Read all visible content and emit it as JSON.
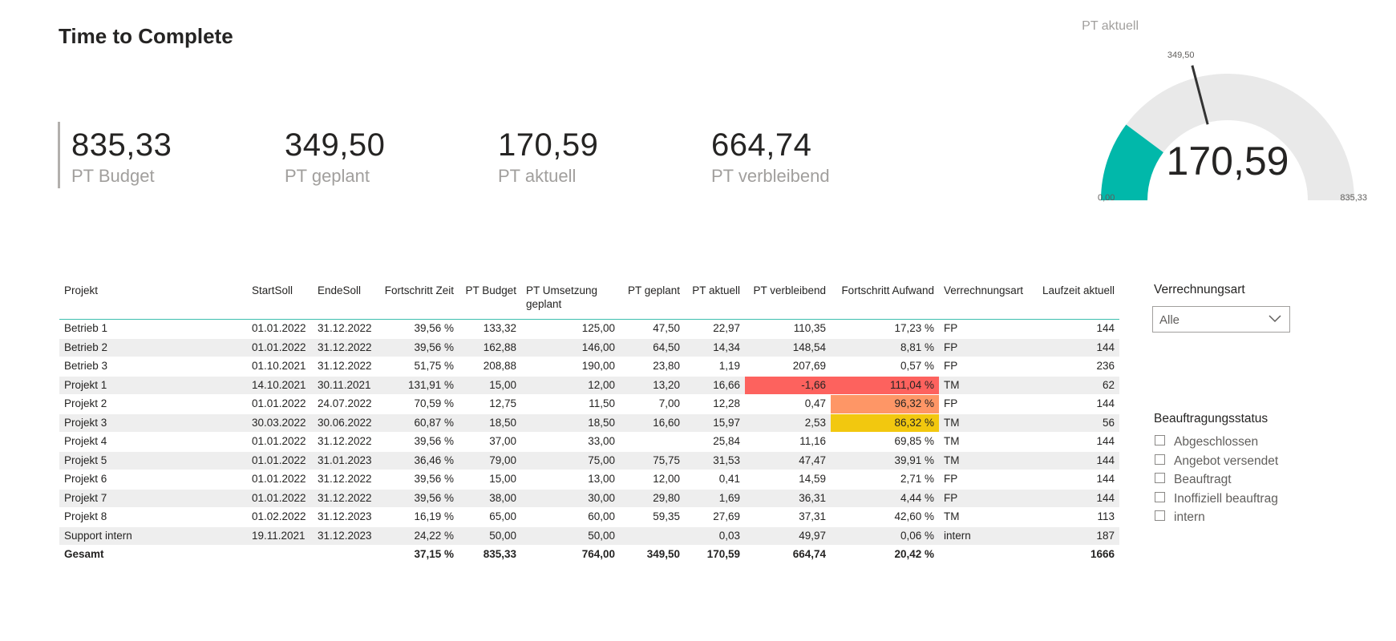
{
  "page": {
    "title": "Time to Complete"
  },
  "kpis": [
    {
      "value": "835,33",
      "label": "PT Budget"
    },
    {
      "value": "349,50",
      "label": "PT geplant"
    },
    {
      "value": "170,59",
      "label": "PT aktuell"
    },
    {
      "value": "664,74",
      "label": "PT verbleibend"
    }
  ],
  "gauge": {
    "title": "PT aktuell",
    "value": 170.59,
    "value_label": "170,59",
    "min": 0,
    "min_label": "0,00",
    "max": 835.33,
    "max_label": "835,33",
    "target": 349.5,
    "target_label": "349,50",
    "fill_color": "#01b8aa",
    "track_color": "#e9e9e9"
  },
  "table": {
    "columns": [
      "Projekt",
      "StartSoll",
      "EndeSoll",
      "Fortschritt Zeit",
      "PT Budget",
      "PT Umsetzung geplant",
      "PT geplant",
      "PT aktuell",
      "PT verbleibend",
      "Fortschritt Aufwand",
      "Verrechnungsart",
      "Laufzeit aktuell"
    ],
    "rows": [
      [
        "Betrieb 1",
        "01.01.2022",
        "31.12.2022",
        "39,56 %",
        "133,32",
        "125,00",
        "47,50",
        "22,97",
        "110,35",
        "17,23 %",
        "FP",
        "144"
      ],
      [
        "Betrieb 2",
        "01.01.2022",
        "31.12.2022",
        "39,56 %",
        "162,88",
        "146,00",
        "64,50",
        "14,34",
        "148,54",
        "8,81 %",
        "FP",
        "144"
      ],
      [
        "Betrieb 3",
        "01.10.2021",
        "31.12.2022",
        "51,75 %",
        "208,88",
        "190,00",
        "23,80",
        "1,19",
        "207,69",
        "0,57 %",
        "FP",
        "236"
      ],
      [
        "Projekt 1",
        "14.10.2021",
        "30.11.2021",
        "131,91 %",
        "15,00",
        "12,00",
        "13,20",
        "16,66",
        "-1,66",
        "111,04 %",
        "TM",
        "62"
      ],
      [
        "Projekt 2",
        "01.01.2022",
        "24.07.2022",
        "70,59 %",
        "12,75",
        "11,50",
        "7,00",
        "12,28",
        "0,47",
        "96,32 %",
        "FP",
        "144"
      ],
      [
        "Projekt 3",
        "30.03.2022",
        "30.06.2022",
        "60,87 %",
        "18,50",
        "18,50",
        "16,60",
        "15,97",
        "2,53",
        "86,32 %",
        "TM",
        "56"
      ],
      [
        "Projekt 4",
        "01.01.2022",
        "31.12.2022",
        "39,56 %",
        "37,00",
        "33,00",
        "",
        "25,84",
        "11,16",
        "69,85 %",
        "TM",
        "144"
      ],
      [
        "Projekt 5",
        "01.01.2022",
        "31.01.2023",
        "36,46 %",
        "79,00",
        "75,00",
        "75,75",
        "31,53",
        "47,47",
        "39,91 %",
        "TM",
        "144"
      ],
      [
        "Projekt 6",
        "01.01.2022",
        "31.12.2022",
        "39,56 %",
        "15,00",
        "13,00",
        "12,00",
        "0,41",
        "14,59",
        "2,71 %",
        "FP",
        "144"
      ],
      [
        "Projekt 7",
        "01.01.2022",
        "31.12.2022",
        "39,56 %",
        "38,00",
        "30,00",
        "29,80",
        "1,69",
        "36,31",
        "4,44 %",
        "FP",
        "144"
      ],
      [
        "Projekt 8",
        "01.02.2022",
        "31.12.2023",
        "16,19 %",
        "65,00",
        "60,00",
        "59,35",
        "27,69",
        "37,31",
        "42,60 %",
        "TM",
        "113"
      ],
      [
        "Support intern",
        "19.11.2021",
        "31.12.2023",
        "24,22 %",
        "50,00",
        "50,00",
        "",
        "0,03",
        "49,97",
        "0,06 %",
        "intern",
        "187"
      ]
    ],
    "total": [
      "Gesamt",
      "",
      "",
      "37,15 %",
      "835,33",
      "764,00",
      "349,50",
      "170,59",
      "664,74",
      "20,42 %",
      "",
      "1666"
    ],
    "highlight_colors": {
      "red": "#fd625e",
      "orange": "#fe9666",
      "yellow": "#f2c80f"
    }
  },
  "slicer_verrechnungsart": {
    "title": "Verrechnungsart",
    "selected": "Alle"
  },
  "slicer_status": {
    "title": "Beauftragungsstatus",
    "options": [
      "Abgeschlossen",
      "Angebot versendet",
      "Beauftragt",
      "Inoffiziell beauftrag",
      "intern"
    ]
  }
}
